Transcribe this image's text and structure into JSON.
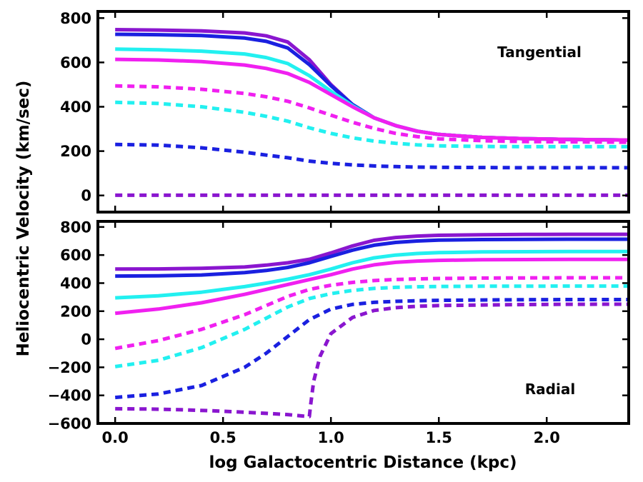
{
  "figure": {
    "xlabel": "log Galactocentric Distance (kpc)",
    "ylabel": "Heliocentric Velocity (km/sec)"
  },
  "colors": {
    "purple": "#8a16cf",
    "blue": "#1a20e0",
    "cyan": "#22f0f0",
    "magenta": "#f020f0"
  },
  "chart_data": [
    {
      "type": "line",
      "annotation": "Tangential",
      "xlim": [
        -0.08,
        2.38
      ],
      "ylim": [
        -75,
        830
      ],
      "xticks": [
        "0.0",
        "0.5",
        "1.0",
        "1.5",
        "2.0"
      ],
      "yticks": [
        "0",
        "200",
        "400",
        "600",
        "800"
      ],
      "x": [
        0.0,
        0.2,
        0.4,
        0.6,
        0.7,
        0.8,
        0.9,
        1.0,
        1.1,
        1.2,
        1.3,
        1.4,
        1.5,
        1.7,
        1.9,
        2.1,
        2.38
      ],
      "series": [
        {
          "name": "purple solid",
          "color": "purple",
          "style": "solid",
          "values": [
            748,
            746,
            742,
            733,
            720,
            692,
            612,
            500,
            410,
            350,
            315,
            290,
            275,
            262,
            256,
            253,
            250
          ]
        },
        {
          "name": "blue solid",
          "color": "blue",
          "style": "solid",
          "values": [
            727,
            725,
            721,
            710,
            695,
            665,
            590,
            495,
            410,
            350,
            315,
            290,
            275,
            262,
            256,
            253,
            250
          ]
        },
        {
          "name": "cyan solid",
          "color": "cyan",
          "style": "solid",
          "values": [
            660,
            657,
            651,
            638,
            622,
            595,
            540,
            470,
            405,
            350,
            315,
            290,
            275,
            262,
            256,
            253,
            250
          ]
        },
        {
          "name": "magenta solid",
          "color": "magenta",
          "style": "solid",
          "values": [
            614,
            611,
            604,
            588,
            573,
            550,
            510,
            455,
            400,
            350,
            315,
            290,
            275,
            262,
            256,
            253,
            250
          ]
        },
        {
          "name": "magenta dashed",
          "color": "magenta",
          "style": "dashed",
          "values": [
            494,
            490,
            479,
            460,
            445,
            425,
            395,
            362,
            330,
            302,
            280,
            265,
            255,
            247,
            243,
            242,
            240
          ]
        },
        {
          "name": "cyan dashed",
          "color": "cyan",
          "style": "dashed",
          "values": [
            420,
            415,
            400,
            375,
            357,
            335,
            305,
            280,
            260,
            245,
            235,
            228,
            224,
            221,
            220,
            220,
            220
          ]
        },
        {
          "name": "blue dashed",
          "color": "blue",
          "style": "dashed",
          "values": [
            230,
            227,
            215,
            195,
            182,
            170,
            155,
            145,
            138,
            133,
            130,
            128,
            127,
            126,
            125,
            125,
            125
          ]
        },
        {
          "name": "purple dashed",
          "color": "purple",
          "style": "dashed",
          "values": [
            1,
            1,
            1,
            1,
            1,
            1,
            1,
            1,
            1,
            1,
            1,
            1,
            1,
            1,
            1,
            1,
            1
          ]
        }
      ]
    },
    {
      "type": "line",
      "annotation": "Radial",
      "xlim": [
        -0.08,
        2.38
      ],
      "ylim": [
        -600,
        840
      ],
      "xticks": [
        "0.0",
        "0.5",
        "1.0",
        "1.5",
        "2.0"
      ],
      "yticks": [
        "−600",
        "−400",
        "−200",
        "0",
        "200",
        "400",
        "600",
        "800"
      ],
      "x": [
        0.0,
        0.2,
        0.4,
        0.6,
        0.7,
        0.8,
        0.9,
        1.0,
        1.1,
        1.2,
        1.3,
        1.4,
        1.5,
        1.7,
        1.9,
        2.1,
        2.38
      ],
      "series": [
        {
          "name": "purple solid",
          "color": "purple",
          "style": "solid",
          "values": [
            500,
            501,
            505,
            515,
            528,
            545,
            570,
            615,
            665,
            705,
            725,
            735,
            741,
            745,
            747,
            748,
            748
          ]
        },
        {
          "name": "blue solid",
          "color": "blue",
          "style": "solid",
          "values": [
            450,
            452,
            458,
            475,
            490,
            512,
            545,
            590,
            635,
            670,
            690,
            700,
            706,
            710,
            712,
            713,
            713
          ]
        },
        {
          "name": "cyan solid",
          "color": "cyan",
          "style": "solid",
          "values": [
            295,
            310,
            335,
            375,
            400,
            428,
            460,
            500,
            545,
            580,
            600,
            611,
            617,
            622,
            624,
            625,
            625
          ]
        },
        {
          "name": "magenta solid",
          "color": "magenta",
          "style": "solid",
          "values": [
            185,
            215,
            260,
            320,
            355,
            390,
            425,
            460,
            500,
            530,
            548,
            557,
            562,
            566,
            568,
            569,
            569
          ]
        },
        {
          "name": "magenta dashed",
          "color": "magenta",
          "style": "dashed",
          "values": [
            -65,
            -10,
            70,
            175,
            240,
            305,
            355,
            385,
            405,
            418,
            426,
            430,
            433,
            436,
            437,
            438,
            438
          ]
        },
        {
          "name": "cyan dashed",
          "color": "cyan",
          "style": "dashed",
          "values": [
            -195,
            -150,
            -60,
            70,
            150,
            230,
            290,
            325,
            348,
            362,
            370,
            374,
            376,
            378,
            378,
            379,
            379
          ]
        },
        {
          "name": "blue dashed",
          "color": "blue",
          "style": "dashed",
          "values": [
            -415,
            -390,
            -330,
            -200,
            -100,
            20,
            140,
            215,
            248,
            263,
            270,
            274,
            277,
            280,
            282,
            283,
            283
          ]
        },
        {
          "name": "purple dashed",
          "color": "purple",
          "style": "dashed",
          "x": [
            0.0,
            0.15,
            0.3,
            0.45,
            0.6,
            0.7,
            0.8,
            0.87,
            0.9,
            0.905,
            0.92,
            0.95,
            1.0,
            1.1,
            1.2,
            1.3,
            1.4,
            1.5,
            1.7,
            1.9,
            2.1,
            2.38
          ],
          "values": [
            -495,
            -497,
            -502,
            -510,
            -520,
            -528,
            -537,
            -547,
            -550,
            -480,
            -300,
            -120,
            40,
            155,
            205,
            225,
            235,
            240,
            244,
            247,
            249,
            250
          ]
        }
      ]
    }
  ]
}
